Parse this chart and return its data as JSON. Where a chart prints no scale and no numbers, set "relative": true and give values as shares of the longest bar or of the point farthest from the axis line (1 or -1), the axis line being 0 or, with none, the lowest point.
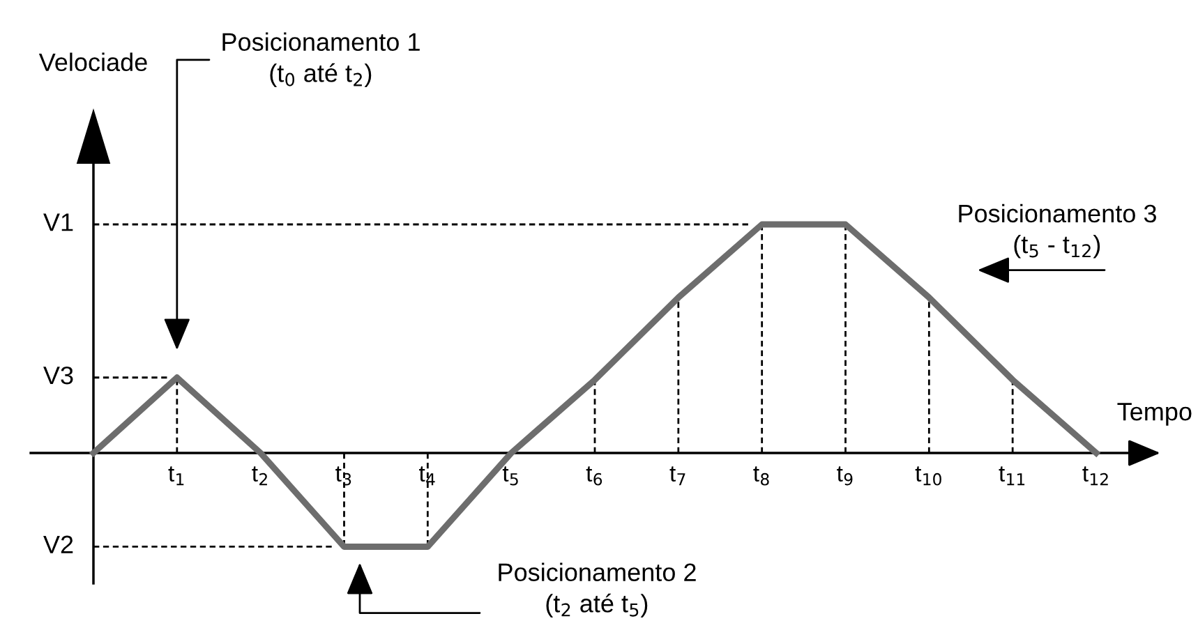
{
  "chart_data": {
    "type": "line",
    "relative": true,
    "xlabel": "Tempo",
    "categories": [
      null,
      "t$_{1}$",
      "t$_{2}$",
      "t$_{3}$",
      "t$_{4}$",
      "t$_{5}$",
      "t$_{6}$",
      "t$_{7}$",
      "t$_{8}$",
      "t$_{9}$",
      "t$_{10}$",
      "t$_{11}$",
      "t$_{12}$"
    ],
    "series": [
      {
        "color": "#6d6d6d",
        "values": [
          0,
          0.33,
          0,
          -0.41,
          -0.41,
          0,
          0.32,
          0.68,
          1,
          1,
          0.68,
          0.32,
          0
        ]
      }
    ],
    "ref_lines": [
      {
        "axis": "y",
        "value": 1,
        "label": "V1",
        "line_style": "dashed",
        "color": "#000000"
      },
      {
        "axis": "y",
        "value": 0.33,
        "label": "V3",
        "line_style": "dashed",
        "color": "#000000"
      },
      {
        "axis": "y",
        "value": -0.41,
        "label": "V2",
        "line_style": "dashed",
        "color": "#000000"
      },
      {
        "axis": "x",
        "value": "t$_{1}$",
        "line_style": "dashed",
        "color": "#000000"
      },
      {
        "axis": "x",
        "value": "t$_{3}$",
        "line_style": "dashed",
        "color": "#000000"
      },
      {
        "axis": "x",
        "value": "t$_{4}$",
        "line_style": "dashed",
        "color": "#000000"
      },
      {
        "axis": "x",
        "value": "t$_{6}$",
        "line_style": "dashed",
        "color": "#000000"
      },
      {
        "axis": "x",
        "value": "t$_{7}$",
        "line_style": "dashed",
        "color": "#000000"
      },
      {
        "axis": "x",
        "value": "t$_{8}$",
        "line_style": "dashed",
        "color": "#000000"
      },
      {
        "axis": "x",
        "value": "t$_{9}$",
        "line_style": "dashed",
        "color": "#000000"
      },
      {
        "axis": "x",
        "value": "t$_{10}$",
        "line_style": "dashed",
        "color": "#000000"
      },
      {
        "axis": "x",
        "value": "t$_{11}$",
        "line_style": "dashed",
        "color": "#000000"
      }
    ],
    "annotations": [
      "Velociade",
      "Posicionamento 1\n(t$_{0}$ até t$_{2}$)",
      "Posicionamento 2\n(t$_{2}$ até t$_{5}$)",
      "Posicionamento 3\n(t$_{5}$ - t$_{12}$)"
    ],
    "grid": false,
    "legend": false,
    "marker": "none",
    "line_style": "solid"
  }
}
